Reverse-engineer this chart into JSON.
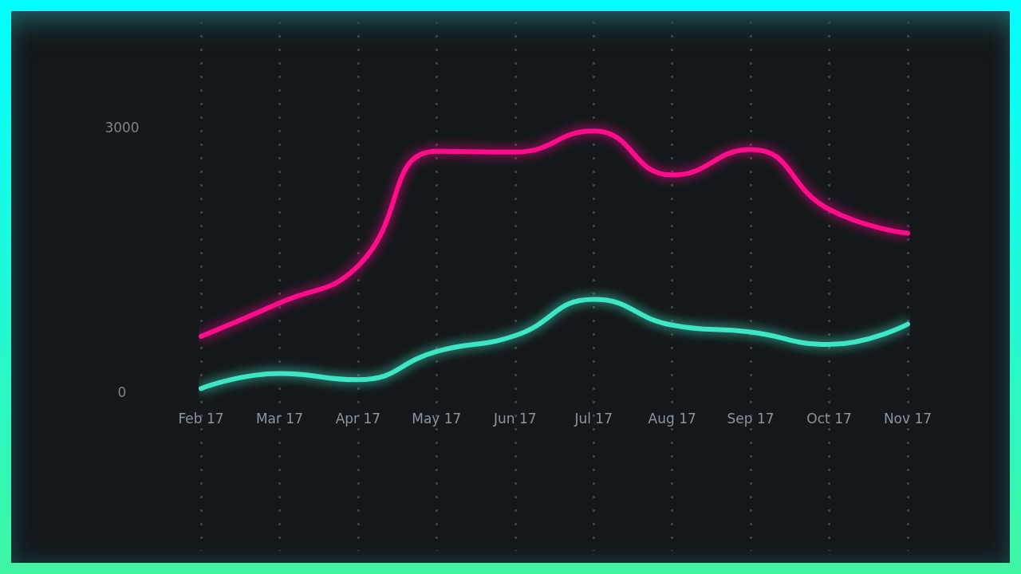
{
  "chart_data": {
    "type": "line",
    "categories": [
      "Feb 17",
      "Mar 17",
      "Apr 17",
      "May 17",
      "Jun 17",
      "Jul 17",
      "Aug 17",
      "Sep 17",
      "Oct 17",
      "Nov 17"
    ],
    "series": [
      {
        "color": "#ff0a8a",
        "values": [
          630,
          1010,
          1430,
          2730,
          2720,
          2960,
          2460,
          2750,
          2070,
          1800
        ]
      },
      {
        "color": "#3de6c4",
        "values": [
          40,
          210,
          140,
          460,
          640,
          1050,
          760,
          680,
          540,
          770
        ]
      }
    ],
    "ylim": [
      -1800,
      4200
    ],
    "yticks": [
      0,
      3000
    ],
    "grid": "x",
    "marker": "none",
    "line_style": "solid"
  }
}
